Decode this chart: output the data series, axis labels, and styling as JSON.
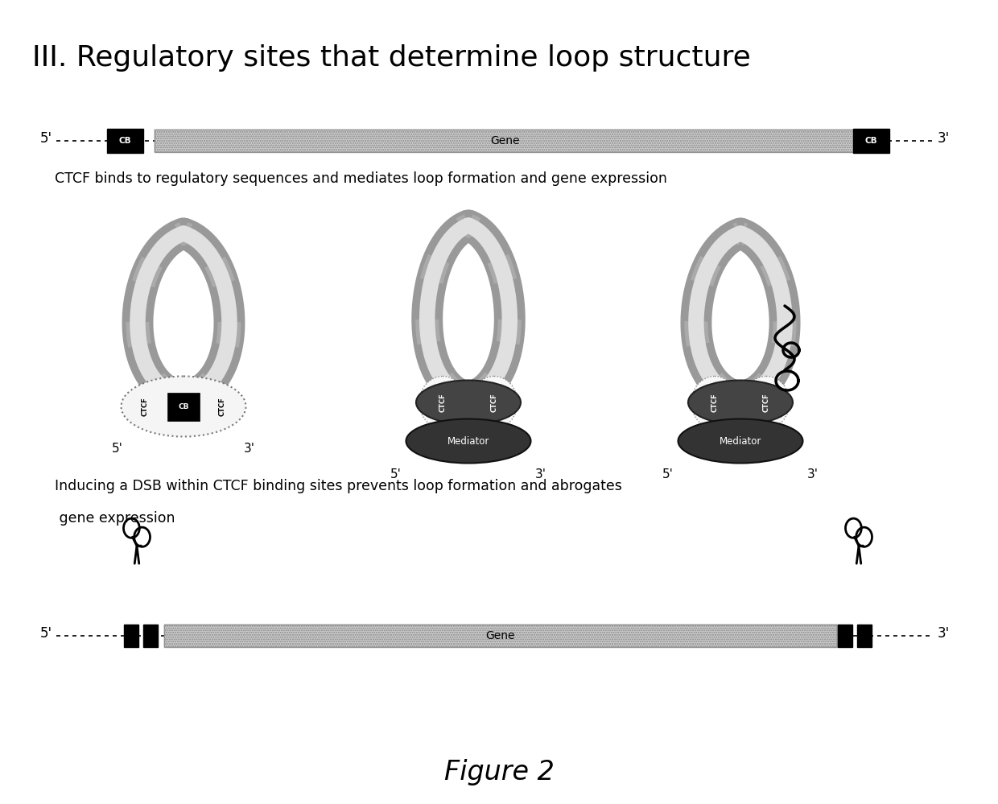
{
  "title": "III. Regulatory sites that determine loop structure",
  "title_fontsize": 26,
  "fig_width": 12.4,
  "fig_height": 9.99,
  "background_color": "#ffffff",
  "top_strand_label_left": "5'",
  "top_strand_label_right": "3'",
  "top_strand_gene_label": "Gene",
  "top_strand_cb_label": "CB",
  "ctcf_text": "CTCF binds to regulatory sequences and mediates loop formation and gene expression",
  "dsb_text_line1": "Inducing a DSB within CTCF binding sites prevents loop formation and abrogates",
  "dsb_text_line2": " gene expression",
  "bottom_strand_label_left": "5'",
  "bottom_strand_label_right": "3'",
  "bottom_strand_gene_label": "Gene",
  "figure_label": "Figure 2",
  "gene_fill": "#cccccc",
  "gene_stroke": "#999999",
  "cb_fill": "#000000",
  "cb_text_color": "#ffffff",
  "loop_outer_color": "#aaaaaa",
  "loop_inner_color": "#dddddd",
  "anchor1_fill": "#f0f0f0",
  "anchor1_edge": "#888888",
  "anchor2_fill": "#555555",
  "anchor2_edge": "#333333",
  "mediator_fill": "#333333",
  "mediator_edge": "#111111"
}
